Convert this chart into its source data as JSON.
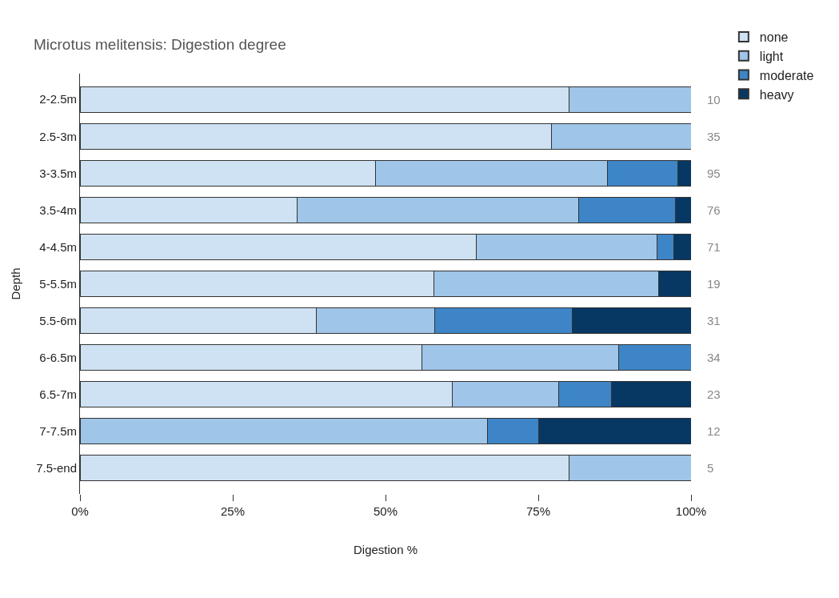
{
  "chart_data": {
    "type": "bar",
    "orientation": "horizontal",
    "stacked": true,
    "title": "Microtus melitensis: Digestion degree",
    "xlabel": "Digestion %",
    "ylabel": "Depth",
    "categories": [
      "2-2.5m",
      "2.5-3m",
      "3-3.5m",
      "3.5-4m",
      "4-4.5m",
      "5-5.5m",
      "5.5-6m",
      "6-6.5m",
      "6.5-7m",
      "7-7.5m",
      "7.5-end"
    ],
    "series": [
      {
        "name": "none",
        "color": "#cfe2f3",
        "values": [
          80,
          77.1,
          48.4,
          35.5,
          64.8,
          57.9,
          38.7,
          55.9,
          60.9,
          null,
          80
        ]
      },
      {
        "name": "light",
        "color": "#9fc5e8",
        "values": [
          20,
          22.9,
          37.9,
          46.1,
          29.6,
          36.8,
          19.4,
          32.3,
          17.4,
          66.7,
          20
        ]
      },
      {
        "name": "moderate",
        "color": "#3d85c6",
        "values": [
          null,
          null,
          11.6,
          15.8,
          2.8,
          null,
          22.5,
          11.8,
          8.7,
          8.3,
          null
        ]
      },
      {
        "name": "heavy",
        "color": "#073763",
        "values": [
          null,
          null,
          2.1,
          2.6,
          2.8,
          5.3,
          19.4,
          null,
          13,
          25,
          null
        ]
      }
    ],
    "annotations": [
      "10",
      "35",
      "95",
      "76",
      "71",
      "19",
      "31",
      "34",
      "23",
      "12",
      "5"
    ],
    "xlim": [
      0,
      100
    ],
    "xticks": [
      {
        "value": 0,
        "label": "0%"
      },
      {
        "value": 25,
        "label": "25%"
      },
      {
        "value": 50,
        "label": "50%"
      },
      {
        "value": 75,
        "label": "75%"
      },
      {
        "value": 100,
        "label": "100%"
      }
    ],
    "legend": "top right"
  }
}
